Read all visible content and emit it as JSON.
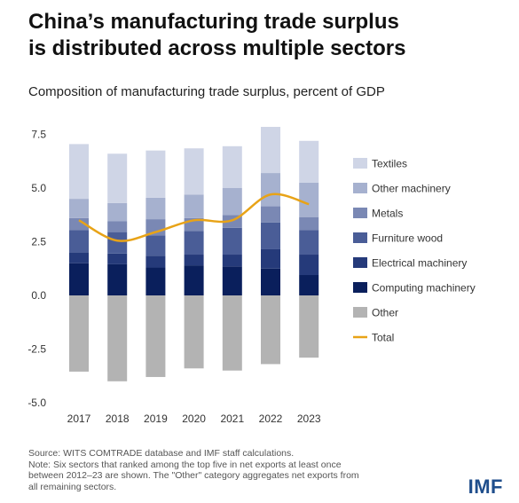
{
  "header": {
    "title_line1": "China’s manufacturing trade surplus",
    "title_line2": "is distributed across multiple sectors",
    "subtitle": "Composition of manufacturing trade surplus, percent of GDP"
  },
  "footer": {
    "source": "Source: WITS COMTRADE database and IMF staff calculations.",
    "note_line1": "Note: Six sectors that ranked among the top five in net exports at least once",
    "note_line2": "between 2012–23 are shown. The \"Other\" category aggregates net exports from",
    "note_line3": "all remaining sectors.",
    "logo": "IMF"
  },
  "chart_data": {
    "type": "bar",
    "stacked": true,
    "categories": [
      "2017",
      "2018",
      "2019",
      "2020",
      "2021",
      "2022",
      "2023"
    ],
    "ylim": [
      -5.0,
      7.5
    ],
    "yticks": [
      "7.5",
      "5.0",
      "2.5",
      "0.0",
      "-2.5",
      "-5.0"
    ],
    "ytick_values": [
      7.5,
      5.0,
      2.5,
      0.0,
      -2.5,
      -5.0
    ],
    "legend_position": "right",
    "grid": false,
    "series": [
      {
        "name": "Computing machinery",
        "color": "#0a1f5c",
        "values": [
          1.5,
          1.45,
          1.3,
          1.4,
          1.35,
          1.25,
          0.95
        ]
      },
      {
        "name": "Electrical machinery",
        "color": "#253a7a",
        "values": [
          0.5,
          0.5,
          0.55,
          0.5,
          0.55,
          0.9,
          0.95
        ]
      },
      {
        "name": "Furniture wood",
        "color": "#4a5d97",
        "values": [
          1.05,
          1.0,
          0.95,
          1.1,
          1.25,
          1.25,
          1.15
        ]
      },
      {
        "name": "Metals",
        "color": "#7a88b4",
        "values": [
          0.55,
          0.5,
          0.75,
          0.6,
          0.6,
          0.75,
          0.6
        ]
      },
      {
        "name": "Other machinery",
        "color": "#a6b1cf",
        "values": [
          0.9,
          0.85,
          1.0,
          1.1,
          1.25,
          1.55,
          1.6
        ]
      },
      {
        "name": "Textiles",
        "color": "#cfd5e6",
        "values": [
          2.55,
          2.3,
          2.2,
          2.15,
          1.95,
          2.15,
          1.95
        ]
      },
      {
        "name": "Other",
        "color": "#b3b3b3",
        "values": [
          -3.55,
          -4.0,
          -3.8,
          -3.4,
          -3.5,
          -3.2,
          -2.9
        ]
      }
    ],
    "line": {
      "name": "Total",
      "color": "#e8a317",
      "values": [
        3.5,
        2.55,
        2.95,
        3.5,
        3.5,
        4.7,
        4.25
      ]
    },
    "legend": [
      "Textiles",
      "Other machinery",
      "Metals",
      "Furniture wood",
      "Electrical machinery",
      "Computing machinery",
      "Other",
      "Total"
    ]
  }
}
